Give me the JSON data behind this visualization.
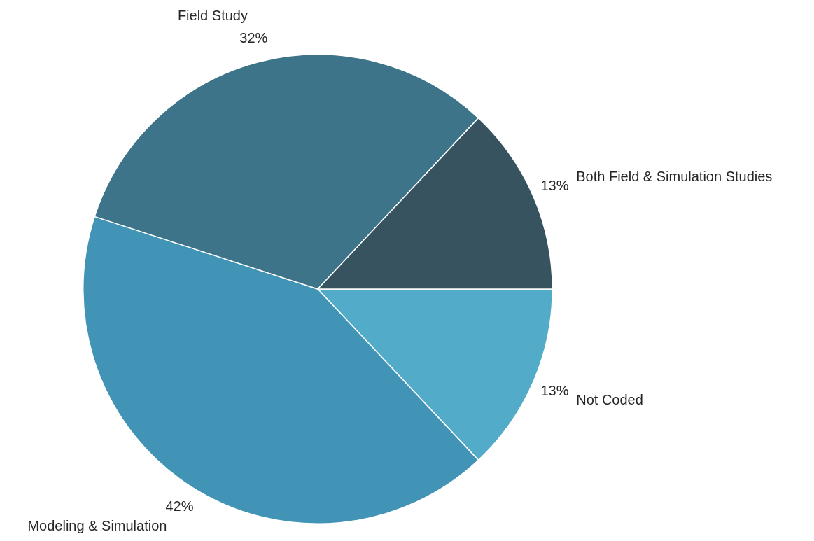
{
  "chart_data": {
    "type": "pie",
    "categories": [
      "Not Coded",
      "Modeling & Simulation",
      "Field Study",
      "Both Field & Simulation Studies"
    ],
    "values": [
      13,
      42,
      32,
      13
    ],
    "value_labels": [
      "13%",
      "42%",
      "32%",
      "13%"
    ],
    "colors": [
      "#52abc8",
      "#4194b6",
      "#3d7489",
      "#37535f"
    ]
  }
}
